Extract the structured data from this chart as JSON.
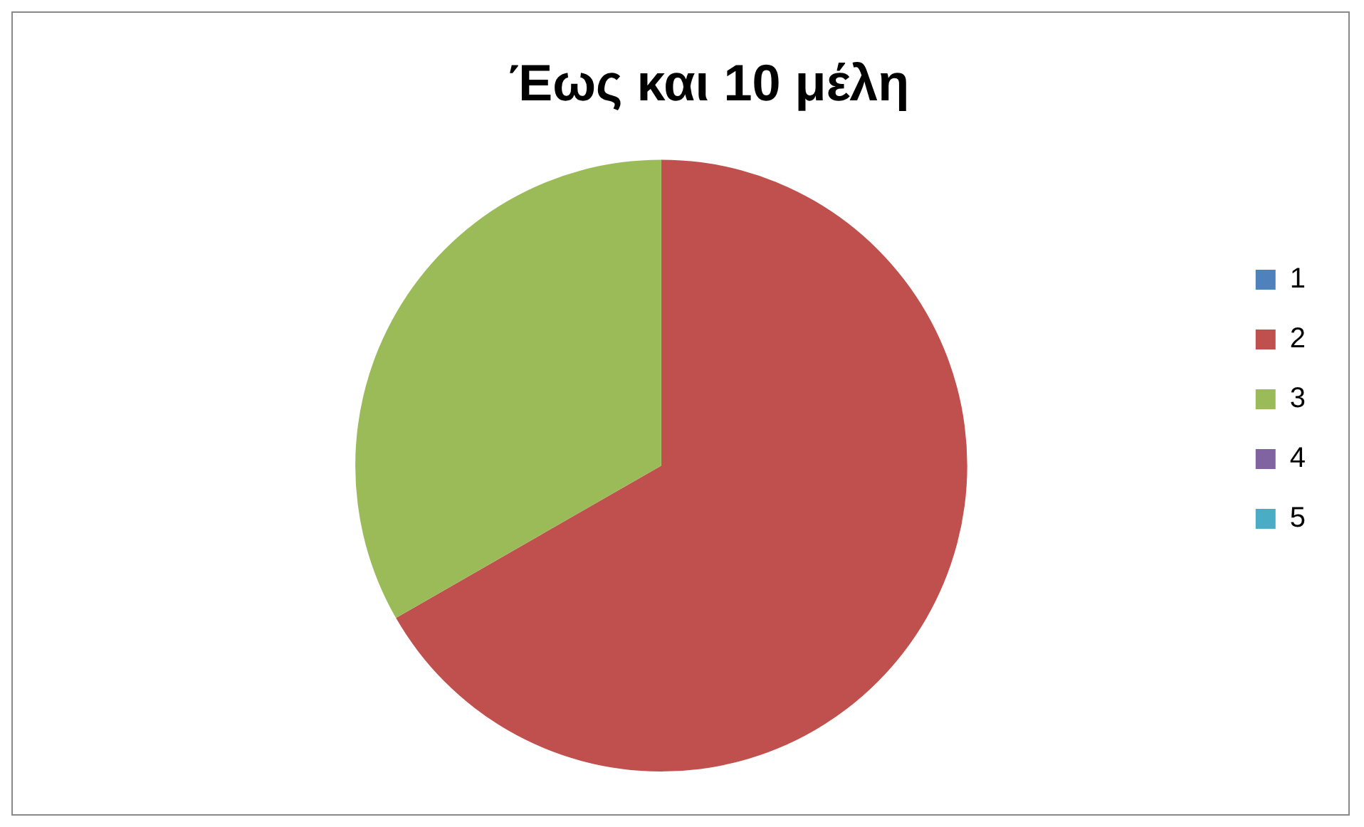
{
  "chart_data": {
    "type": "pie",
    "title": "Έως και 10 μέλη",
    "categories": [
      "1",
      "2",
      "3",
      "4",
      "5"
    ],
    "values": [
      0,
      66.7,
      33.3,
      0,
      0
    ],
    "colors": [
      "#4f81bd",
      "#c0504d",
      "#9bbb59",
      "#8064a2",
      "#4bacc6"
    ],
    "legend": "right"
  }
}
